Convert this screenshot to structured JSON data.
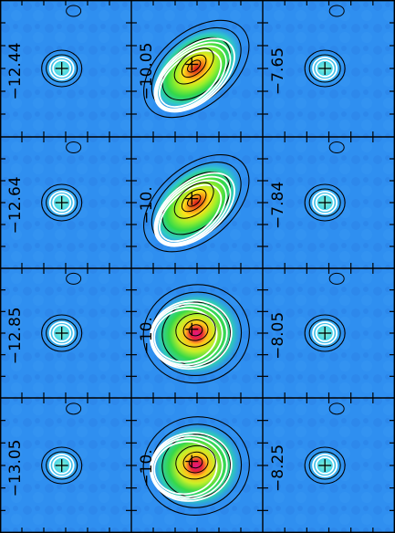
{
  "figure": {
    "rows": 4,
    "cols": 3,
    "colors": {
      "background": "#2f8ff0",
      "contour_black": "#000000",
      "contour_white": "#ffffff",
      "cross": "#000000"
    },
    "panels": [
      {
        "label": "−12.44",
        "kind": "compact",
        "peak": "cyan"
      },
      {
        "label": "−10.05",
        "kind": "extended",
        "peak": "red"
      },
      {
        "label": "−7.65",
        "kind": "compact",
        "peak": "cyan"
      },
      {
        "label": "−12.64",
        "kind": "compact",
        "peak": "cyan"
      },
      {
        "label": "−10.",
        "kind": "extended",
        "peak": "red"
      },
      {
        "label": "−7.84",
        "kind": "compact",
        "peak": "cyan"
      },
      {
        "label": "−12.85",
        "kind": "compact",
        "peak": "cyan"
      },
      {
        "label": "−10.",
        "kind": "extended-round",
        "peak": "magenta"
      },
      {
        "label": "−8.05",
        "kind": "compact",
        "peak": "cyan"
      },
      {
        "label": "−13.05",
        "kind": "compact",
        "peak": "cyan"
      },
      {
        "label": "−10.",
        "kind": "extended-round",
        "peak": "magenta"
      },
      {
        "label": "−8.25",
        "kind": "compact",
        "peak": "cyan"
      }
    ]
  }
}
